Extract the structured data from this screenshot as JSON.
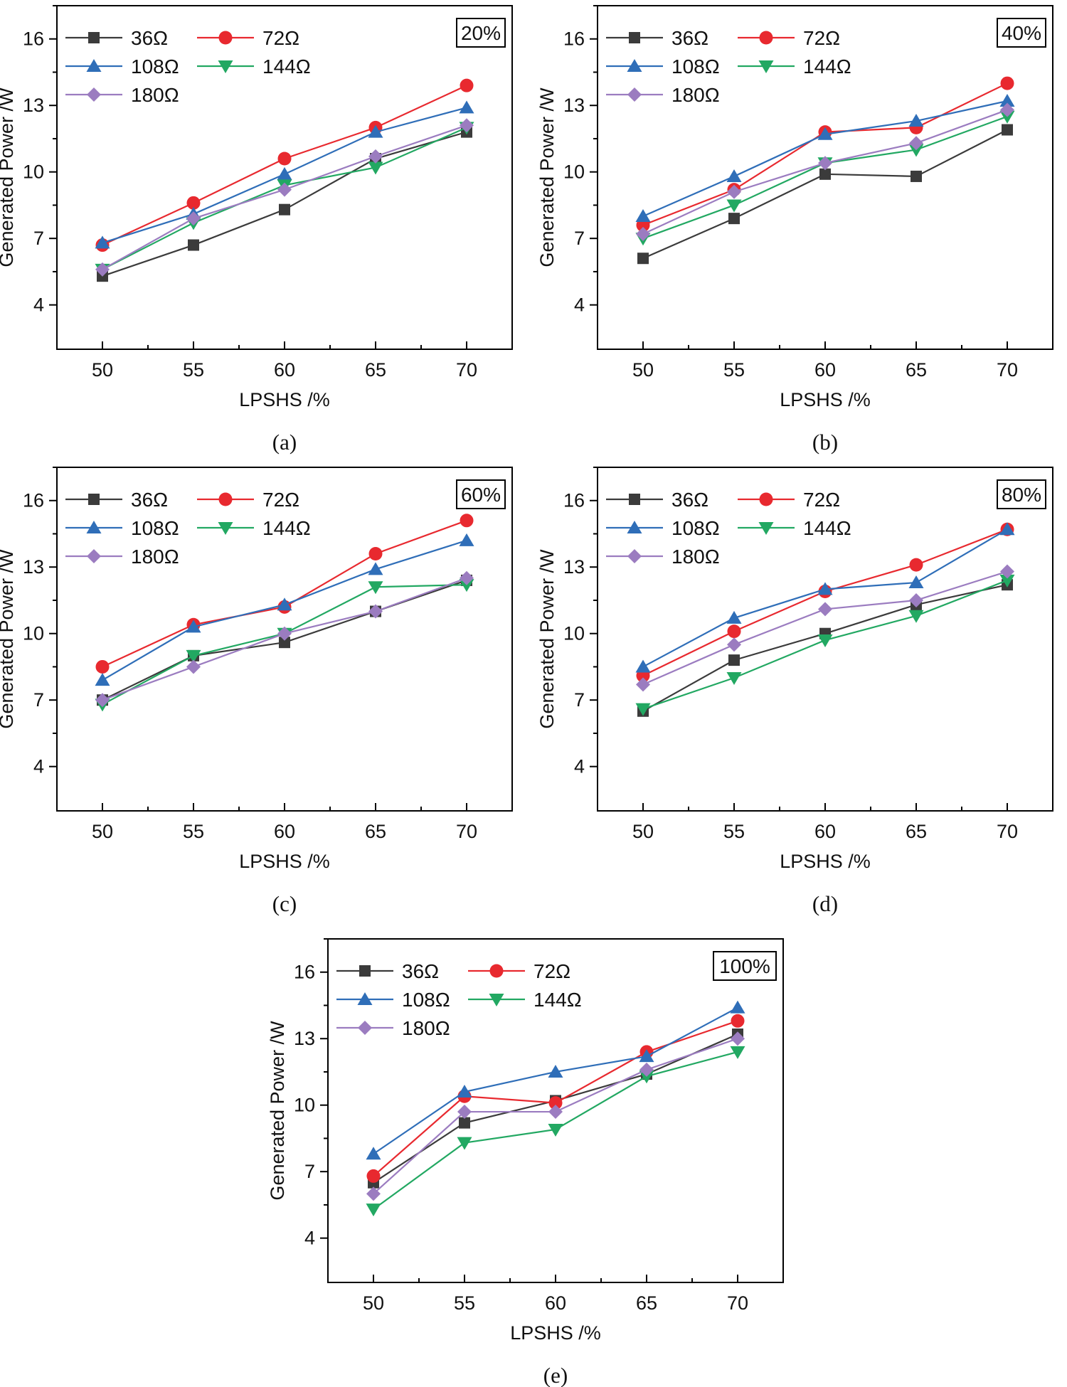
{
  "chart_data": [
    {
      "panel": "a",
      "caption": "(a)",
      "badge": "20%",
      "type": "line",
      "xlabel": "LPSHS /%",
      "ylabel": "Generated Power /W",
      "x": [
        50,
        55,
        60,
        65,
        70
      ],
      "x_tick_labels": [
        "50",
        "55",
        "60",
        "65",
        "70"
      ],
      "y_tick_labels": [
        "4",
        "7",
        "10",
        "13",
        "16"
      ],
      "xlim": [
        47.5,
        72.5
      ],
      "ylim": [
        2,
        17.5
      ],
      "series": [
        {
          "name": "36Ω",
          "values": [
            5.3,
            6.7,
            8.3,
            10.6,
            11.8
          ]
        },
        {
          "name": "72Ω",
          "values": [
            6.7,
            8.6,
            10.6,
            12.0,
            13.9
          ]
        },
        {
          "name": "108Ω",
          "values": [
            6.8,
            8.1,
            9.9,
            11.8,
            12.9
          ]
        },
        {
          "name": "144Ω",
          "values": [
            5.6,
            7.7,
            9.4,
            10.2,
            12.0
          ]
        },
        {
          "name": "180Ω",
          "values": [
            5.6,
            7.9,
            9.2,
            10.7,
            12.1
          ]
        }
      ]
    },
    {
      "panel": "b",
      "caption": "(b)",
      "badge": "40%",
      "type": "line",
      "xlabel": "LPSHS /%",
      "ylabel": "Generated Power /W",
      "x": [
        50,
        55,
        60,
        65,
        70
      ],
      "x_tick_labels": [
        "50",
        "55",
        "60",
        "65",
        "70"
      ],
      "y_tick_labels": [
        "4",
        "7",
        "10",
        "13",
        "16"
      ],
      "xlim": [
        47.5,
        72.5
      ],
      "ylim": [
        2,
        17.5
      ],
      "series": [
        {
          "name": "36Ω",
          "values": [
            6.1,
            7.9,
            9.9,
            9.8,
            11.9
          ]
        },
        {
          "name": "72Ω",
          "values": [
            7.6,
            9.2,
            11.8,
            12.0,
            14.0
          ]
        },
        {
          "name": "108Ω",
          "values": [
            8.0,
            9.8,
            11.7,
            12.3,
            13.2
          ]
        },
        {
          "name": "144Ω",
          "values": [
            7.0,
            8.5,
            10.4,
            11.0,
            12.5
          ]
        },
        {
          "name": "180Ω",
          "values": [
            7.2,
            9.1,
            10.4,
            11.3,
            12.8
          ]
        }
      ]
    },
    {
      "panel": "c",
      "caption": "(c)",
      "badge": "60%",
      "type": "line",
      "xlabel": "LPSHS /%",
      "ylabel": "Generated Power /W",
      "x": [
        50,
        55,
        60,
        65,
        70
      ],
      "x_tick_labels": [
        "50",
        "55",
        "60",
        "65",
        "70"
      ],
      "y_tick_labels": [
        "4",
        "7",
        "10",
        "13",
        "16"
      ],
      "xlim": [
        47.5,
        72.5
      ],
      "ylim": [
        2,
        17.5
      ],
      "series": [
        {
          "name": "36Ω",
          "values": [
            7.0,
            9.0,
            9.6,
            11.0,
            12.4
          ]
        },
        {
          "name": "72Ω",
          "values": [
            8.5,
            10.4,
            11.2,
            13.6,
            15.1
          ]
        },
        {
          "name": "108Ω",
          "values": [
            7.9,
            10.3,
            11.3,
            12.9,
            14.2
          ]
        },
        {
          "name": "144Ω",
          "values": [
            6.8,
            9.0,
            10.0,
            12.1,
            12.2
          ]
        },
        {
          "name": "180Ω",
          "values": [
            7.0,
            8.5,
            10.0,
            11.0,
            12.5
          ]
        }
      ]
    },
    {
      "panel": "d",
      "caption": "(d)",
      "badge": "80%",
      "type": "line",
      "xlabel": "LPSHS /%",
      "ylabel": "Generated Power /W",
      "x": [
        50,
        55,
        60,
        65,
        70
      ],
      "x_tick_labels": [
        "50",
        "55",
        "60",
        "65",
        "70"
      ],
      "y_tick_labels": [
        "4",
        "7",
        "10",
        "13",
        "16"
      ],
      "xlim": [
        47.5,
        72.5
      ],
      "ylim": [
        2,
        17.5
      ],
      "series": [
        {
          "name": "36Ω",
          "values": [
            6.5,
            8.8,
            10.0,
            11.3,
            12.2
          ]
        },
        {
          "name": "72Ω",
          "values": [
            8.1,
            10.1,
            11.9,
            13.1,
            14.7
          ]
        },
        {
          "name": "108Ω",
          "values": [
            8.5,
            10.7,
            12.0,
            12.3,
            14.7
          ]
        },
        {
          "name": "144Ω",
          "values": [
            6.6,
            8.0,
            9.7,
            10.8,
            12.4
          ]
        },
        {
          "name": "180Ω",
          "values": [
            7.7,
            9.5,
            11.1,
            11.5,
            12.8
          ]
        }
      ]
    },
    {
      "panel": "e",
      "caption": "(e)",
      "badge": "100%",
      "type": "line",
      "xlabel": "LPSHS /%",
      "ylabel": "Generated Power /W",
      "x": [
        50,
        55,
        60,
        65,
        70
      ],
      "x_tick_labels": [
        "50",
        "55",
        "60",
        "65",
        "70"
      ],
      "y_tick_labels": [
        "4",
        "7",
        "10",
        "13",
        "16"
      ],
      "xlim": [
        47.5,
        72.5
      ],
      "ylim": [
        2,
        17.5
      ],
      "series": [
        {
          "name": "36Ω",
          "values": [
            6.5,
            9.2,
            10.2,
            11.4,
            13.2
          ]
        },
        {
          "name": "72Ω",
          "values": [
            6.8,
            10.4,
            10.1,
            12.4,
            13.8
          ]
        },
        {
          "name": "108Ω",
          "values": [
            7.8,
            10.6,
            11.5,
            12.2,
            14.4
          ]
        },
        {
          "name": "144Ω",
          "values": [
            5.3,
            8.3,
            8.9,
            11.3,
            12.4
          ]
        },
        {
          "name": "180Ω",
          "values": [
            6.0,
            9.7,
            9.7,
            11.6,
            13.0
          ]
        }
      ]
    }
  ],
  "series_style": [
    {
      "color": "#3b3b3b",
      "marker": "square"
    },
    {
      "color": "#e8292f",
      "marker": "circle"
    },
    {
      "color": "#2f6eb8",
      "marker": "triangle-up"
    },
    {
      "color": "#22a862",
      "marker": "triangle-down"
    },
    {
      "color": "#9b7cc0",
      "marker": "diamond"
    }
  ]
}
